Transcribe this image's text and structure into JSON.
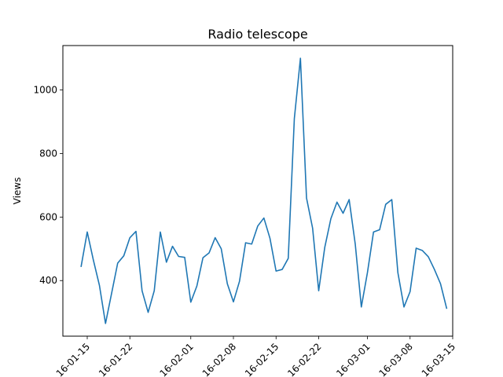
{
  "chart_data": {
    "type": "line",
    "title": "Radio telescope",
    "xlabel": "",
    "ylabel": "Views",
    "x_tick_labels": [
      "16-01-15",
      "16-01-22",
      "16-02-01",
      "16-02-08",
      "16-02-15",
      "16-02-22",
      "16-03-01",
      "16-03-08",
      "16-03-15"
    ],
    "y_ticks": [
      400,
      600,
      800,
      1000
    ],
    "ylim": [
      225,
      1140
    ],
    "grid": false,
    "legend": "none",
    "series": [
      {
        "color": "#1f77b4",
        "x": [
          "2016-01-14",
          "2016-01-15",
          "2016-01-16",
          "2016-01-17",
          "2016-01-18",
          "2016-01-19",
          "2016-01-20",
          "2016-01-21",
          "2016-01-22",
          "2016-01-23",
          "2016-01-24",
          "2016-01-25",
          "2016-01-26",
          "2016-01-27",
          "2016-01-28",
          "2016-01-29",
          "2016-01-30",
          "2016-01-31",
          "2016-02-01",
          "2016-02-02",
          "2016-02-03",
          "2016-02-04",
          "2016-02-05",
          "2016-02-06",
          "2016-02-07",
          "2016-02-08",
          "2016-02-09",
          "2016-02-10",
          "2016-02-11",
          "2016-02-12",
          "2016-02-13",
          "2016-02-14",
          "2016-02-15",
          "2016-02-16",
          "2016-02-17",
          "2016-02-18",
          "2016-02-19",
          "2016-02-20",
          "2016-02-21",
          "2016-02-22",
          "2016-02-23",
          "2016-02-24",
          "2016-02-25",
          "2016-02-26",
          "2016-02-27",
          "2016-02-28",
          "2016-02-29",
          "2016-03-01",
          "2016-03-02",
          "2016-03-03",
          "2016-03-04",
          "2016-03-05",
          "2016-03-06",
          "2016-03-07",
          "2016-03-08",
          "2016-03-09",
          "2016-03-10",
          "2016-03-11",
          "2016-03-12",
          "2016-03-13",
          "2016-03-14"
        ],
        "values": [
          445,
          553,
          465,
          385,
          265,
          360,
          455,
          478,
          535,
          555,
          368,
          300,
          368,
          553,
          458,
          508,
          476,
          473,
          332,
          383,
          472,
          487,
          535,
          500,
          390,
          333,
          398,
          519,
          515,
          572,
          597,
          533,
          430,
          435,
          470,
          910,
          1100,
          660,
          565,
          368,
          505,
          595,
          647,
          612,
          655,
          515,
          317,
          425,
          553,
          560,
          640,
          655,
          425,
          317,
          365,
          502,
          495,
          475,
          435,
          390,
          313
        ]
      }
    ]
  }
}
